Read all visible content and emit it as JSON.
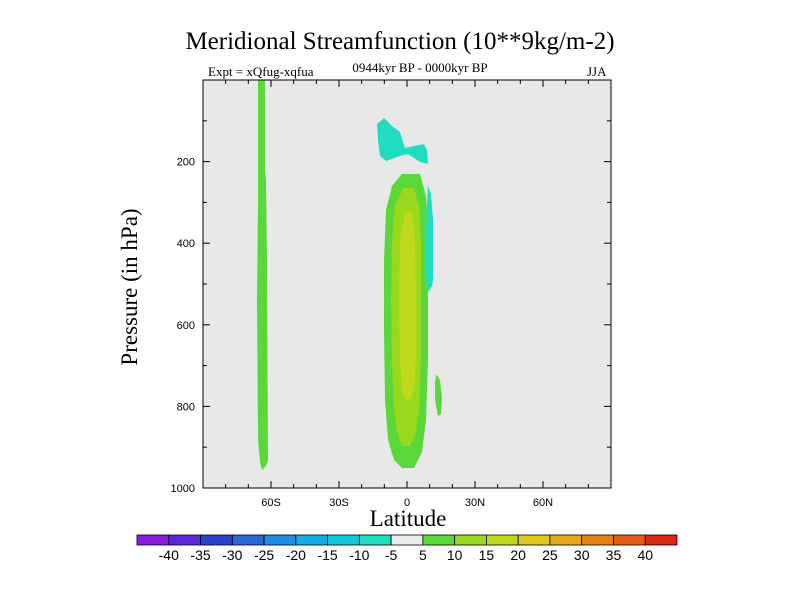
{
  "chart_data": {
    "type": "contour",
    "title": "Meridional Streamfunction (10**9kg/m-2)",
    "experiment": "Expt = xQfug-xqfua",
    "period": "0944kyr BP - 0000kyr BP",
    "season": "JJA",
    "xlabel": "Latitude",
    "ylabel": "Pressure (in hPa)",
    "xlim": [
      -90,
      90
    ],
    "ylim": [
      1000,
      0
    ],
    "x_ticks": [
      {
        "value": -60,
        "label": "60S"
      },
      {
        "value": -30,
        "label": "30S"
      },
      {
        "value": 0,
        "label": "0"
      },
      {
        "value": 30,
        "label": "30N"
      },
      {
        "value": 60,
        "label": "60N"
      }
    ],
    "y_ticks": [
      {
        "value": 200,
        "label": "200"
      },
      {
        "value": 400,
        "label": "400"
      },
      {
        "value": 600,
        "label": "600"
      },
      {
        "value": 800,
        "label": "800"
      },
      {
        "value": 1000,
        "label": "1000"
      }
    ],
    "colorbar": {
      "labels": [
        "-40",
        "-35",
        "-30",
        "-25",
        "-20",
        "-15",
        "-10",
        "-5",
        "5",
        "10",
        "15",
        "20",
        "25",
        "30",
        "35",
        "40"
      ],
      "colors": [
        "#8a1ee0",
        "#5a28d8",
        "#2a40d0",
        "#2a68d8",
        "#1e8ce0",
        "#14aee6",
        "#14c8dc",
        "#20dcc0",
        "#ececec",
        "#5ad83a",
        "#9ad81e",
        "#c0d81e",
        "#dcc81e",
        "#e6aa14",
        "#e68214",
        "#e65a14",
        "#d82814"
      ]
    },
    "features": [
      {
        "name": "positive-band-60S",
        "level": "5 to 10",
        "lat_range": [
          -65,
          -62
        ],
        "pressure_range": [
          0,
          950
        ]
      },
      {
        "name": "positive-cell-equator",
        "level": "5 to 20",
        "lat_range": [
          -10,
          8
        ],
        "pressure_range": [
          230,
          950
        ],
        "max_level": "15 to 20",
        "max_near_lat": 0,
        "max_near_pressure": 650
      },
      {
        "name": "negative-upper-equator",
        "level": "-10 to -5",
        "lat_range": [
          -14,
          10
        ],
        "pressure_range": [
          90,
          220
        ]
      },
      {
        "name": "negative-strip-10N",
        "level": "-10 to -5",
        "lat_range": [
          8,
          12
        ],
        "pressure_range": [
          230,
          510
        ]
      },
      {
        "name": "positive-spot-15N",
        "level": "5 to 10",
        "lat_range": [
          14,
          17
        ],
        "pressure_range": [
          730,
          830
        ]
      }
    ]
  }
}
